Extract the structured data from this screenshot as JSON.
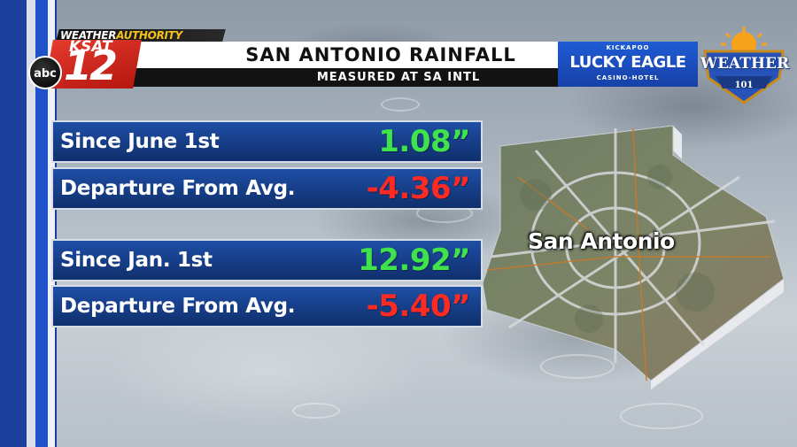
{
  "branding": {
    "weather_authority_prefix": "WEATHER",
    "weather_authority_suffix": "AUTHORITY",
    "station_name": "KSAT",
    "channel_number": "12",
    "network": "abc"
  },
  "header": {
    "title": "SAN ANTONIO RAINFALL",
    "subtitle": "MEASURED AT SA INTL"
  },
  "sponsor": {
    "top": "KICKAPOO",
    "name": "LUCKY EAGLE",
    "sub": "CASINO-HOTEL"
  },
  "badge": {
    "title": "WEATHER",
    "number": "101"
  },
  "rainfall": {
    "rows": [
      {
        "label": "Since June 1st",
        "value": "1.08”",
        "kind": "positive"
      },
      {
        "label": "Departure From Avg.",
        "value": "-4.36”",
        "kind": "negative"
      },
      {
        "label": "Since Jan. 1st",
        "value": "12.92”",
        "kind": "positive"
      },
      {
        "label": "Departure From Avg.",
        "value": "-5.40”",
        "kind": "negative"
      }
    ]
  },
  "map": {
    "label": "San Antonio"
  },
  "colors": {
    "positive": "#3fe44a",
    "negative": "#ff2a22",
    "row_blue": "#163d86",
    "brand_blue": "#1f52c9",
    "brand_red": "#e63a2e"
  }
}
